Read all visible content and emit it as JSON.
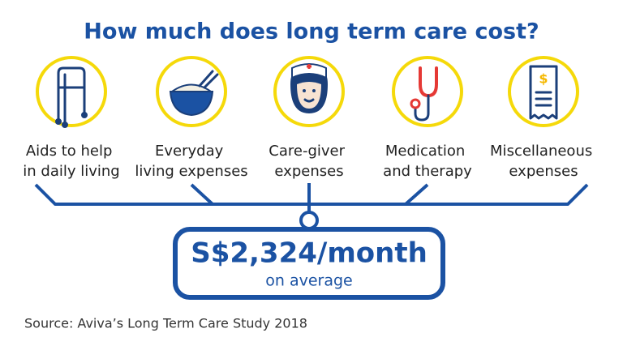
{
  "title": "How much does long term care cost?",
  "items": [
    {
      "label": [
        "Aids to help",
        "in daily living"
      ]
    },
    {
      "label": [
        "Everyday",
        "living expenses"
      ]
    },
    {
      "label": [
        "Care-giver",
        "expenses"
      ]
    },
    {
      "label": [
        "Medication",
        "and therapy"
      ]
    },
    {
      "label": [
        "Miscellaneous",
        "expenses"
      ]
    }
  ],
  "total": {
    "amount": "S$2,324/month",
    "note": "on average"
  },
  "source": "Source: Aviva’s Long Term Care Study 2018"
}
